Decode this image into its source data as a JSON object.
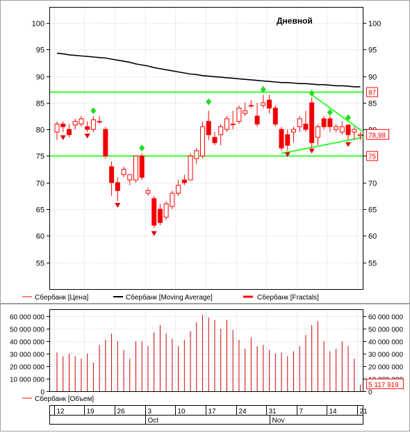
{
  "chart_data": [
    {
      "type": "candlestick",
      "title": "Дневной",
      "ylim": [
        50,
        103
      ],
      "yticks": [
        55,
        60,
        65,
        70,
        75,
        80,
        85,
        90,
        95,
        100
      ],
      "grid": true,
      "legend": [
        {
          "label": "Сбербанк [Цена]",
          "color": "#ff0000"
        },
        {
          "label": "Сбербанк [Moving Average]",
          "color": "#000000"
        },
        {
          "label": "Сбербанк [Fractals]",
          "color": "#ff0000"
        }
      ],
      "levels": [
        {
          "value": 87,
          "label": "87",
          "color": "#33ff33"
        },
        {
          "value": 75,
          "label": "75",
          "color": "#33ff33"
        }
      ],
      "last_price_label": "78,98",
      "candles": [
        {
          "o": 79.5,
          "h": 81.5,
          "l": 78.0,
          "c": 81.0
        },
        {
          "o": 81.0,
          "h": 81.5,
          "l": 79.5,
          "c": 80.5
        },
        {
          "o": 80.0,
          "h": 81.0,
          "l": 78.5,
          "c": 79.0
        },
        {
          "o": 80.8,
          "h": 82.0,
          "l": 80.0,
          "c": 81.5
        },
        {
          "o": 81.0,
          "h": 82.5,
          "l": 80.5,
          "c": 82.0
        },
        {
          "o": 80.5,
          "h": 81.5,
          "l": 79.5,
          "c": 80.0
        },
        {
          "o": 80.0,
          "h": 82.5,
          "l": 79.5,
          "c": 81.8
        },
        {
          "o": 81.5,
          "h": 82.5,
          "l": 81.0,
          "c": 81.5
        },
        {
          "o": 80.0,
          "h": 80.5,
          "l": 74.5,
          "c": 75.0
        },
        {
          "o": 73.0,
          "h": 74.0,
          "l": 67.5,
          "c": 70.0
        },
        {
          "o": 70.0,
          "h": 71.0,
          "l": 66.5,
          "c": 68.5
        },
        {
          "o": 71.5,
          "h": 73.0,
          "l": 71.0,
          "c": 72.5
        },
        {
          "o": 70.5,
          "h": 71.5,
          "l": 69.5,
          "c": 71.5
        },
        {
          "o": 70.5,
          "h": 75.0,
          "l": 70.0,
          "c": 75.0
        },
        {
          "o": 75.0,
          "h": 75.5,
          "l": 70.5,
          "c": 71.0
        },
        {
          "o": 68.0,
          "h": 69.0,
          "l": 67.5,
          "c": 68.5
        },
        {
          "o": 67.0,
          "h": 67.5,
          "l": 61.5,
          "c": 62.0
        },
        {
          "o": 65.0,
          "h": 66.0,
          "l": 62.0,
          "c": 62.5
        },
        {
          "o": 63.5,
          "h": 66.5,
          "l": 63.0,
          "c": 66.0
        },
        {
          "o": 65.5,
          "h": 68.5,
          "l": 65.0,
          "c": 68.0
        },
        {
          "o": 68.0,
          "h": 70.5,
          "l": 67.5,
          "c": 69.5
        },
        {
          "o": 70.5,
          "h": 71.5,
          "l": 69.5,
          "c": 70.0
        },
        {
          "o": 70.5,
          "h": 75.5,
          "l": 70.5,
          "c": 75.0
        },
        {
          "o": 74.5,
          "h": 76.5,
          "l": 73.5,
          "c": 76.0
        },
        {
          "o": 75.0,
          "h": 81.5,
          "l": 74.5,
          "c": 80.5
        },
        {
          "o": 81.5,
          "h": 83.5,
          "l": 78.0,
          "c": 79.0
        },
        {
          "o": 78.5,
          "h": 79.5,
          "l": 77.0,
          "c": 77.5
        },
        {
          "o": 79.0,
          "h": 81.0,
          "l": 77.0,
          "c": 80.5
        },
        {
          "o": 80.0,
          "h": 82.5,
          "l": 79.5,
          "c": 82.0
        },
        {
          "o": 81.0,
          "h": 83.5,
          "l": 80.0,
          "c": 81.0
        },
        {
          "o": 81.5,
          "h": 84.5,
          "l": 81.0,
          "c": 84.0
        },
        {
          "o": 83.0,
          "h": 85.0,
          "l": 82.5,
          "c": 83.5
        },
        {
          "o": 84.5,
          "h": 85.5,
          "l": 84.0,
          "c": 84.5
        },
        {
          "o": 82.5,
          "h": 85.0,
          "l": 80.5,
          "c": 81.0
        },
        {
          "o": 84.5,
          "h": 86.5,
          "l": 84.0,
          "c": 85.0
        },
        {
          "o": 85.5,
          "h": 86.5,
          "l": 83.0,
          "c": 84.0
        },
        {
          "o": 84.0,
          "h": 84.5,
          "l": 80.5,
          "c": 81.0
        },
        {
          "o": 80.0,
          "h": 80.5,
          "l": 76.0,
          "c": 76.5
        },
        {
          "o": 79.0,
          "h": 80.0,
          "l": 76.0,
          "c": 77.0
        },
        {
          "o": 79.5,
          "h": 80.5,
          "l": 77.5,
          "c": 80.0
        },
        {
          "o": 80.5,
          "h": 82.5,
          "l": 79.5,
          "c": 82.0
        },
        {
          "o": 81.0,
          "h": 83.5,
          "l": 79.5,
          "c": 80.0
        },
        {
          "o": 85.0,
          "h": 86.0,
          "l": 76.5,
          "c": 77.5
        },
        {
          "o": 78.5,
          "h": 81.0,
          "l": 77.0,
          "c": 80.5
        },
        {
          "o": 82.0,
          "h": 82.5,
          "l": 80.0,
          "c": 80.5
        },
        {
          "o": 82.0,
          "h": 82.5,
          "l": 79.5,
          "c": 80.5
        },
        {
          "o": 80.0,
          "h": 81.0,
          "l": 79.5,
          "c": 80.5
        },
        {
          "o": 79.5,
          "h": 81.5,
          "l": 79.0,
          "c": 80.5
        },
        {
          "o": 80.8,
          "h": 81.0,
          "l": 78.0,
          "c": 79.0
        },
        {
          "o": 79.5,
          "h": 80.5,
          "l": 78.0,
          "c": 80.0
        },
        {
          "o": 78.8,
          "h": 79.5,
          "l": 78.0,
          "c": 79.0
        }
      ],
      "moving_average": [
        94.3,
        94.2,
        94.0,
        93.9,
        93.8,
        93.7,
        93.6,
        93.5,
        93.4,
        93.2,
        93.0,
        92.8,
        92.6,
        92.3,
        92.1,
        91.9,
        91.6,
        91.4,
        91.2,
        91.0,
        90.8,
        90.6,
        90.4,
        90.3,
        90.1,
        90.0,
        89.9,
        89.8,
        89.7,
        89.6,
        89.5,
        89.4,
        89.3,
        89.2,
        89.1,
        89.0,
        88.9,
        88.8,
        88.8,
        88.7,
        88.6,
        88.6,
        88.5,
        88.4,
        88.4,
        88.3,
        88.2,
        88.2,
        88.1,
        88.0,
        88.0
      ],
      "fractals_up": [
        {
          "i": 6,
          "v": 83.5
        },
        {
          "i": 14,
          "v": 76.5
        },
        {
          "i": 25,
          "v": 85.2
        },
        {
          "i": 34,
          "v": 87.5
        },
        {
          "i": 42,
          "v": 86.8
        },
        {
          "i": 45,
          "v": 83.2
        },
        {
          "i": 48,
          "v": 82.2
        }
      ],
      "fractals_down": [
        {
          "i": 1,
          "v": 78.5
        },
        {
          "i": 5,
          "v": 78.8
        },
        {
          "i": 10,
          "v": 65.8
        },
        {
          "i": 16,
          "v": 60.5
        },
        {
          "i": 38,
          "v": 75.3
        },
        {
          "i": 42,
          "v": 76.0
        },
        {
          "i": 48,
          "v": 77.2
        }
      ],
      "trendlines": [
        {
          "x1": 42,
          "y1": 86.5,
          "x2": 50.5,
          "y2": 79.5
        },
        {
          "x1": 37,
          "y1": 75.5,
          "x2": 50.5,
          "y2": 78.5
        }
      ]
    },
    {
      "type": "bar",
      "ylim": [
        0,
        65000000
      ],
      "ytick_labels": [
        "0",
        "10 000 000",
        "20 000 000",
        "30 000 000",
        "40 000 000",
        "50 000 000",
        "60 000 000"
      ],
      "yticks": [
        0,
        10000000,
        20000000,
        30000000,
        40000000,
        50000000,
        60000000
      ],
      "legend": [
        {
          "label": "Сбербанк [Объем]",
          "color": "#ff0000"
        }
      ],
      "last_value_label": "5 117 919",
      "values": [
        31000000,
        28000000,
        30000000,
        28000000,
        26000000,
        30000000,
        23000000,
        37000000,
        41000000,
        46000000,
        40000000,
        33000000,
        26000000,
        40000000,
        40000000,
        36000000,
        47000000,
        53000000,
        46000000,
        42000000,
        36000000,
        41000000,
        48000000,
        55000000,
        61000000,
        59000000,
        57000000,
        50000000,
        57000000,
        49000000,
        41000000,
        34000000,
        43000000,
        36000000,
        37000000,
        33000000,
        30000000,
        31000000,
        28000000,
        32000000,
        36000000,
        45000000,
        53000000,
        56000000,
        40000000,
        32000000,
        34000000,
        40000000,
        36000000,
        26000000,
        5117919
      ]
    }
  ],
  "xaxis": {
    "day_labels": [
      {
        "i": 0,
        "t": "12"
      },
      {
        "i": 5,
        "t": "19"
      },
      {
        "i": 10,
        "t": "26"
      },
      {
        "i": 15,
        "t": "3"
      },
      {
        "i": 20,
        "t": "10"
      },
      {
        "i": 25,
        "t": "17"
      },
      {
        "i": 30,
        "t": "24"
      },
      {
        "i": 35,
        "t": "31"
      },
      {
        "i": 40,
        "t": "7"
      },
      {
        "i": 45,
        "t": "14"
      },
      {
        "i": 50,
        "t": "21"
      }
    ],
    "month_labels": [
      {
        "i": 15,
        "t": "Oct"
      },
      {
        "i": 35.5,
        "t": "Nov"
      }
    ]
  }
}
